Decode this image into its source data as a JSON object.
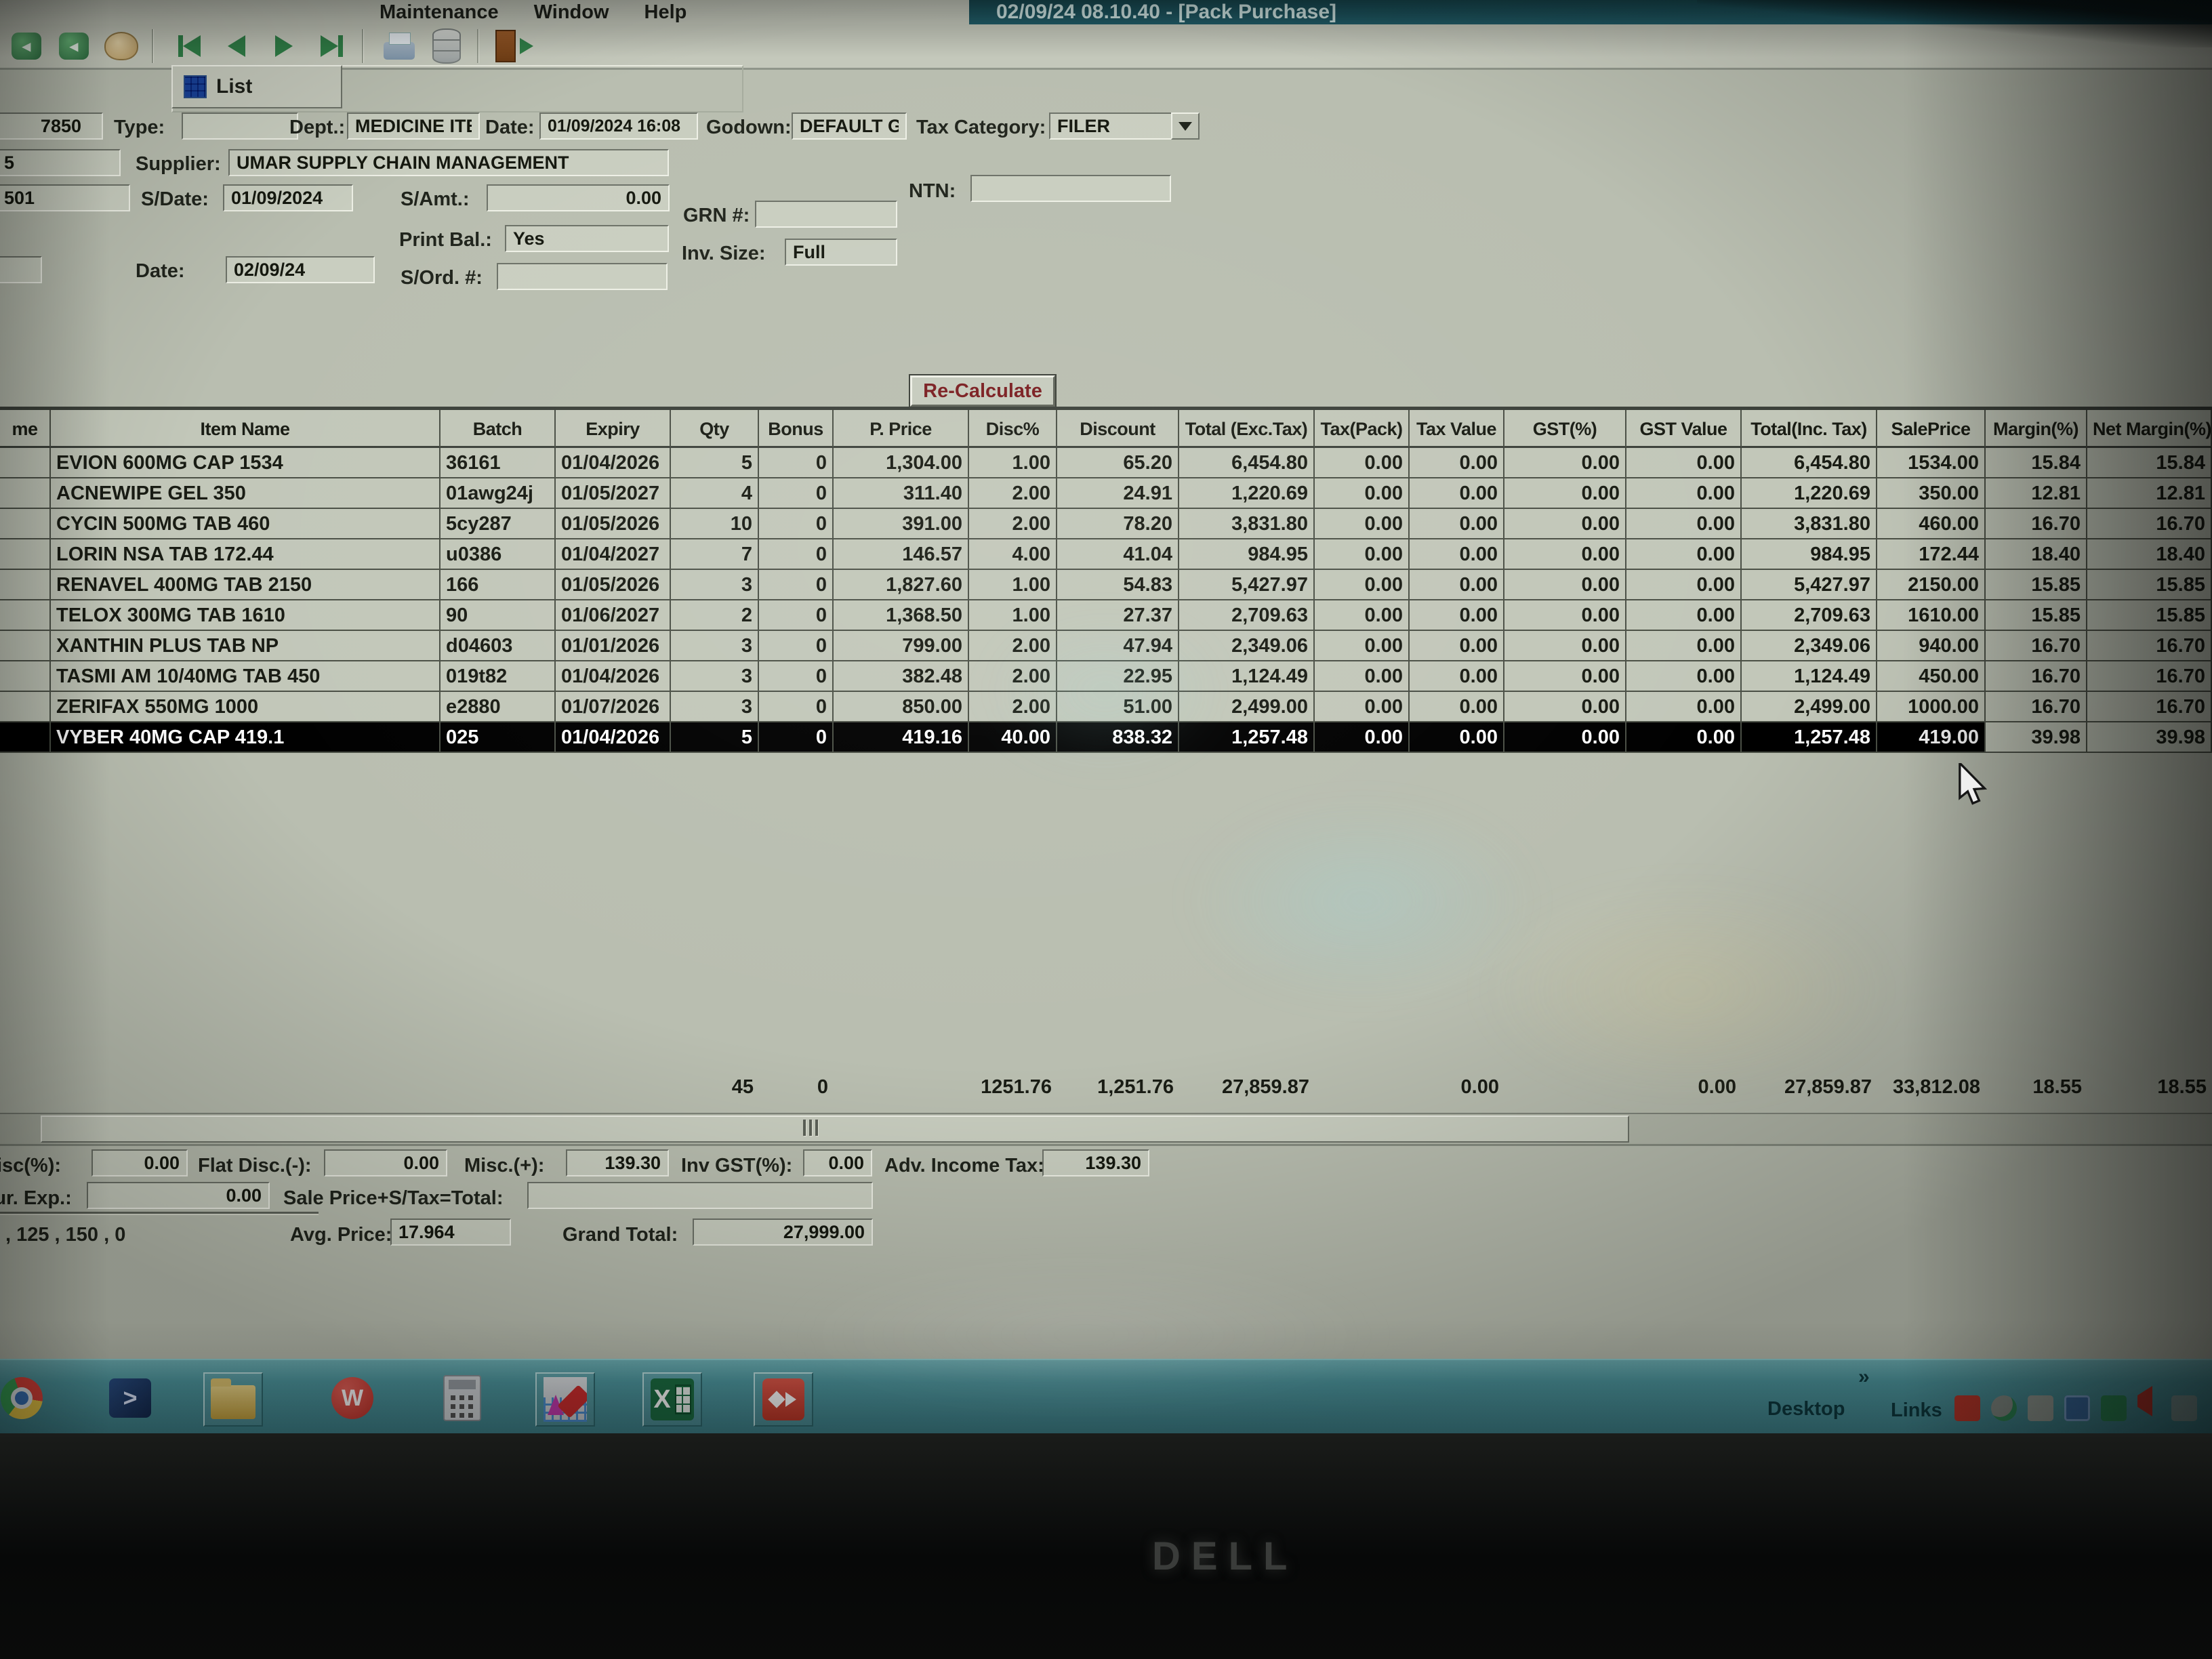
{
  "window": {
    "title": "02/09/24 08.10.40 - [Pack Purchase]",
    "menu": [
      "Maintenance",
      "Window",
      "Help"
    ]
  },
  "tabs": {
    "list": "List"
  },
  "form": {
    "doc_no": "7850",
    "type_label": "Type:",
    "dept_label": "Dept.:",
    "dept": "MEDICINE ITE",
    "date_label": "Date:",
    "date": "01/09/2024 16:08",
    "godown_label": "Godown:",
    "godown": "DEFAULT G",
    "tax_category_label": "Tax Category:",
    "tax_category": "FILER",
    "supplier_label": "Supplier:",
    "supplier": "UMAR SUPPLY CHAIN MANAGEMENT",
    "ntn_label": "NTN:",
    "sdate_label": "S/Date:",
    "sdate": "01/09/2024",
    "samt_label": "S/Amt.:",
    "samt": "0.00",
    "grn_label": "GRN #:",
    "print_bal_label": "Print Bal.:",
    "print_bal": "Yes",
    "inv_size_label": "Inv. Size:",
    "inv_size": "Full",
    "date2_label": "Date:",
    "date2": "02/09/24",
    "sord_label": "S/Ord. #:",
    "left_edge_1": "5",
    "left_edge_2": "501"
  },
  "recalc_button": "Re-Calculate",
  "table": {
    "partial_header": "me",
    "headers": [
      "Item Name",
      "Batch",
      "Expiry",
      "Qty",
      "Bonus",
      "P. Price",
      "Disc%",
      "Discount",
      "Total (Exc.Tax)",
      "Tax(Pack)",
      "Tax Value",
      "GST(%)",
      "GST Value",
      "Total(Inc. Tax)",
      "SalePrice",
      "Margin(%)",
      "Net Margin(%)"
    ],
    "rows": [
      [
        "EVION 600MG CAP 1534",
        "36161",
        "01/04/2026",
        "5",
        "0",
        "1,304.00",
        "1.00",
        "65.20",
        "6,454.80",
        "0.00",
        "0.00",
        "0.00",
        "0.00",
        "6,454.80",
        "1534.00",
        "15.84",
        "15.84"
      ],
      [
        "ACNEWIPE GEL 350",
        "01awg24j",
        "01/05/2027",
        "4",
        "0",
        "311.40",
        "2.00",
        "24.91",
        "1,220.69",
        "0.00",
        "0.00",
        "0.00",
        "0.00",
        "1,220.69",
        "350.00",
        "12.81",
        "12.81"
      ],
      [
        "CYCIN 500MG TAB 460",
        "5cy287",
        "01/05/2026",
        "10",
        "0",
        "391.00",
        "2.00",
        "78.20",
        "3,831.80",
        "0.00",
        "0.00",
        "0.00",
        "0.00",
        "3,831.80",
        "460.00",
        "16.70",
        "16.70"
      ],
      [
        "LORIN NSA TAB 172.44",
        "u0386",
        "01/04/2027",
        "7",
        "0",
        "146.57",
        "4.00",
        "41.04",
        "984.95",
        "0.00",
        "0.00",
        "0.00",
        "0.00",
        "984.95",
        "172.44",
        "18.40",
        "18.40"
      ],
      [
        "RENAVEL 400MG TAB 2150",
        "166",
        "01/05/2026",
        "3",
        "0",
        "1,827.60",
        "1.00",
        "54.83",
        "5,427.97",
        "0.00",
        "0.00",
        "0.00",
        "0.00",
        "5,427.97",
        "2150.00",
        "15.85",
        "15.85"
      ],
      [
        "TELOX 300MG TAB 1610",
        "90",
        "01/06/2027",
        "2",
        "0",
        "1,368.50",
        "1.00",
        "27.37",
        "2,709.63",
        "0.00",
        "0.00",
        "0.00",
        "0.00",
        "2,709.63",
        "1610.00",
        "15.85",
        "15.85"
      ],
      [
        "XANTHIN PLUS TAB NP",
        "d04603",
        "01/01/2026",
        "3",
        "0",
        "799.00",
        "2.00",
        "47.94",
        "2,349.06",
        "0.00",
        "0.00",
        "0.00",
        "0.00",
        "2,349.06",
        "940.00",
        "16.70",
        "16.70"
      ],
      [
        "TASMI AM 10/40MG TAB 450",
        "019t82",
        "01/04/2026",
        "3",
        "0",
        "382.48",
        "2.00",
        "22.95",
        "1,124.49",
        "0.00",
        "0.00",
        "0.00",
        "0.00",
        "1,124.49",
        "450.00",
        "16.70",
        "16.70"
      ],
      [
        "ZERIFAX 550MG 1000",
        "e2880",
        "01/07/2026",
        "3",
        "0",
        "850.00",
        "2.00",
        "51.00",
        "2,499.00",
        "0.00",
        "0.00",
        "0.00",
        "0.00",
        "2,499.00",
        "1000.00",
        "16.70",
        "16.70"
      ],
      [
        "VYBER 40MG CAP 419.1",
        "025",
        "01/04/2026",
        "5",
        "0",
        "419.16",
        "40.00",
        "838.32",
        "1,257.48",
        "0.00",
        "0.00",
        "0.00",
        "0.00",
        "1,257.48",
        "419.00",
        "39.98",
        "39.98"
      ]
    ],
    "selected_row_index": 9,
    "totals": [
      "",
      "",
      "",
      "45",
      "0",
      "",
      "1251.76",
      "1,251.76",
      "27,859.87",
      "",
      "0.00",
      "",
      "0.00",
      "27,859.87",
      "33,812.08",
      "18.55",
      "18.55"
    ]
  },
  "footer": {
    "disc_pct_label": "Disc(%):",
    "disc_pct": "0.00",
    "flat_disc_label": "Flat Disc.(-):",
    "flat_disc": "0.00",
    "misc_label": "Misc.(+):",
    "misc": "139.30",
    "inv_gst_label": "Inv GST(%):",
    "inv_gst": "0.00",
    "adv_tax_label": "Adv. Income Tax:",
    "adv_tax": "139.30",
    "pur_exp_label": "Pur. Exp.:",
    "pur_exp": "0.00",
    "sale_total_label": "Sale Price+S/Tax=Total:",
    "pack_sizes": ", 125 , 150 , 0",
    "avg_price_label": "Avg. Price:",
    "avg_price": "17.964",
    "grand_total_label": "Grand Total:",
    "grand_total": "27,999.00"
  },
  "taskbar": {
    "chevron": "»",
    "desktop": "Desktop",
    "links": "Links"
  },
  "monitor": {
    "brand": "DELL"
  },
  "colors": {
    "titlebar": "#215f6b",
    "taskbar": "#4f9aa2",
    "selection": "#000000",
    "accent_text": "#7a1d20"
  }
}
